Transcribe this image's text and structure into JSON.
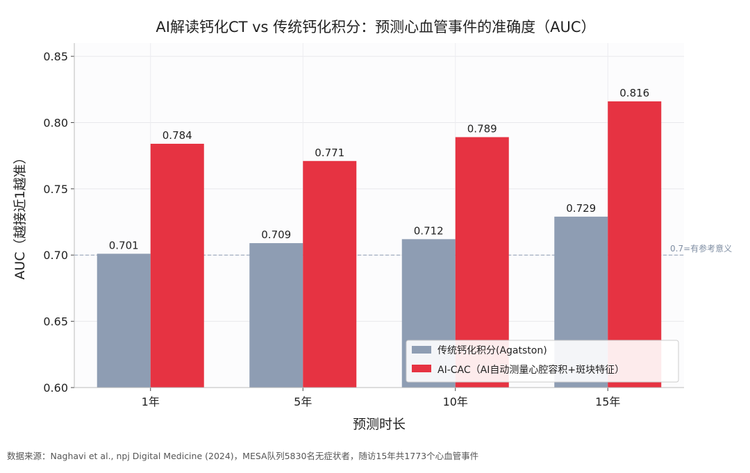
{
  "chart_data": {
    "type": "bar",
    "title": "AI解读钙化CT vs 传统钙化积分：预测心血管事件的准确度（AUC）",
    "xlabel": "预测时长",
    "ylabel": "AUC（越接近1越准）",
    "categories": [
      "1年",
      "5年",
      "10年",
      "15年"
    ],
    "series": [
      {
        "name": "传统钙化积分(Agatston)",
        "color": "#8e9db3",
        "values": [
          0.701,
          0.709,
          0.712,
          0.729
        ],
        "labels": [
          "0.701",
          "0.709",
          "0.712",
          "0.729"
        ]
      },
      {
        "name": "AI-CAC（AI自动测量心腔容积+斑块特征）",
        "color": "#e63342",
        "values": [
          0.784,
          0.771,
          0.789,
          0.816
        ],
        "labels": [
          "0.784",
          "0.771",
          "0.789",
          "0.816"
        ]
      }
    ],
    "ylim": [
      0.6,
      0.86
    ],
    "yticks": [
      "0.60",
      "0.65",
      "0.70",
      "0.75",
      "0.80",
      "0.85"
    ],
    "reference_line": {
      "value": 0.7,
      "label": "0.7=有参考意义",
      "color": "#8e9db3"
    },
    "grid": true,
    "legend_position": "lower-right"
  },
  "footer": {
    "source": "数据来源：Naghavi et al., npj Digital Medicine (2024)，MESA队列5830名无症状者，随访15年共1773个心血管事件"
  }
}
